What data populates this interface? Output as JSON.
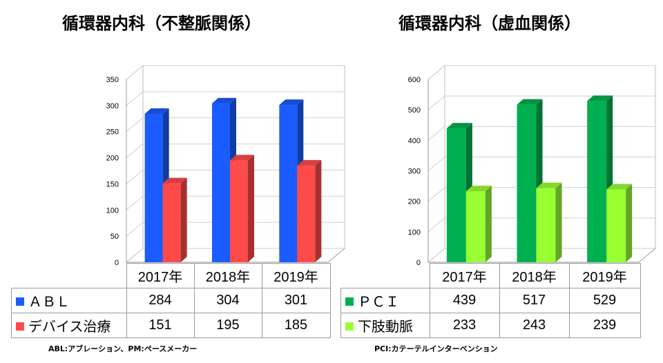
{
  "charts_meta": {
    "left": {
      "title": "循環器内科（不整脈関係）",
      "note": "ABL:アブレーション、PM:ペースメーカー",
      "colors": [
        "#1a5cff",
        "#ff4a4a"
      ]
    },
    "right": {
      "title": "循環器内科（虚血関係）",
      "note": "PCI:カテーテルインターベンション",
      "colors": [
        "#00b050",
        "#99ff33"
      ]
    }
  },
  "chart_data": [
    {
      "type": "bar",
      "title": "循環器内科（不整脈関係）",
      "categories": [
        "2017年",
        "2018年",
        "2019年"
      ],
      "series": [
        {
          "name": "ＡＢＬ",
          "values": [
            284,
            304,
            301
          ]
        },
        {
          "name": "デバイス治療",
          "values": [
            151,
            195,
            185
          ]
        }
      ],
      "ylim": [
        0,
        350
      ],
      "yticks": [
        "0",
        "50",
        "100",
        "150",
        "200",
        "250",
        "300",
        "350"
      ],
      "grid": true
    },
    {
      "type": "bar",
      "title": "循環器内科（虚血関係）",
      "categories": [
        "2017年",
        "2018年",
        "2019年"
      ],
      "series": [
        {
          "name": "ＰＣＩ",
          "values": [
            439,
            517,
            529
          ]
        },
        {
          "name": "下肢動脈",
          "values": [
            233,
            243,
            239
          ]
        }
      ],
      "ylim": [
        0,
        600
      ],
      "yticks": [
        "0",
        "100",
        "200",
        "300",
        "400",
        "500",
        "600"
      ],
      "grid": true
    }
  ]
}
